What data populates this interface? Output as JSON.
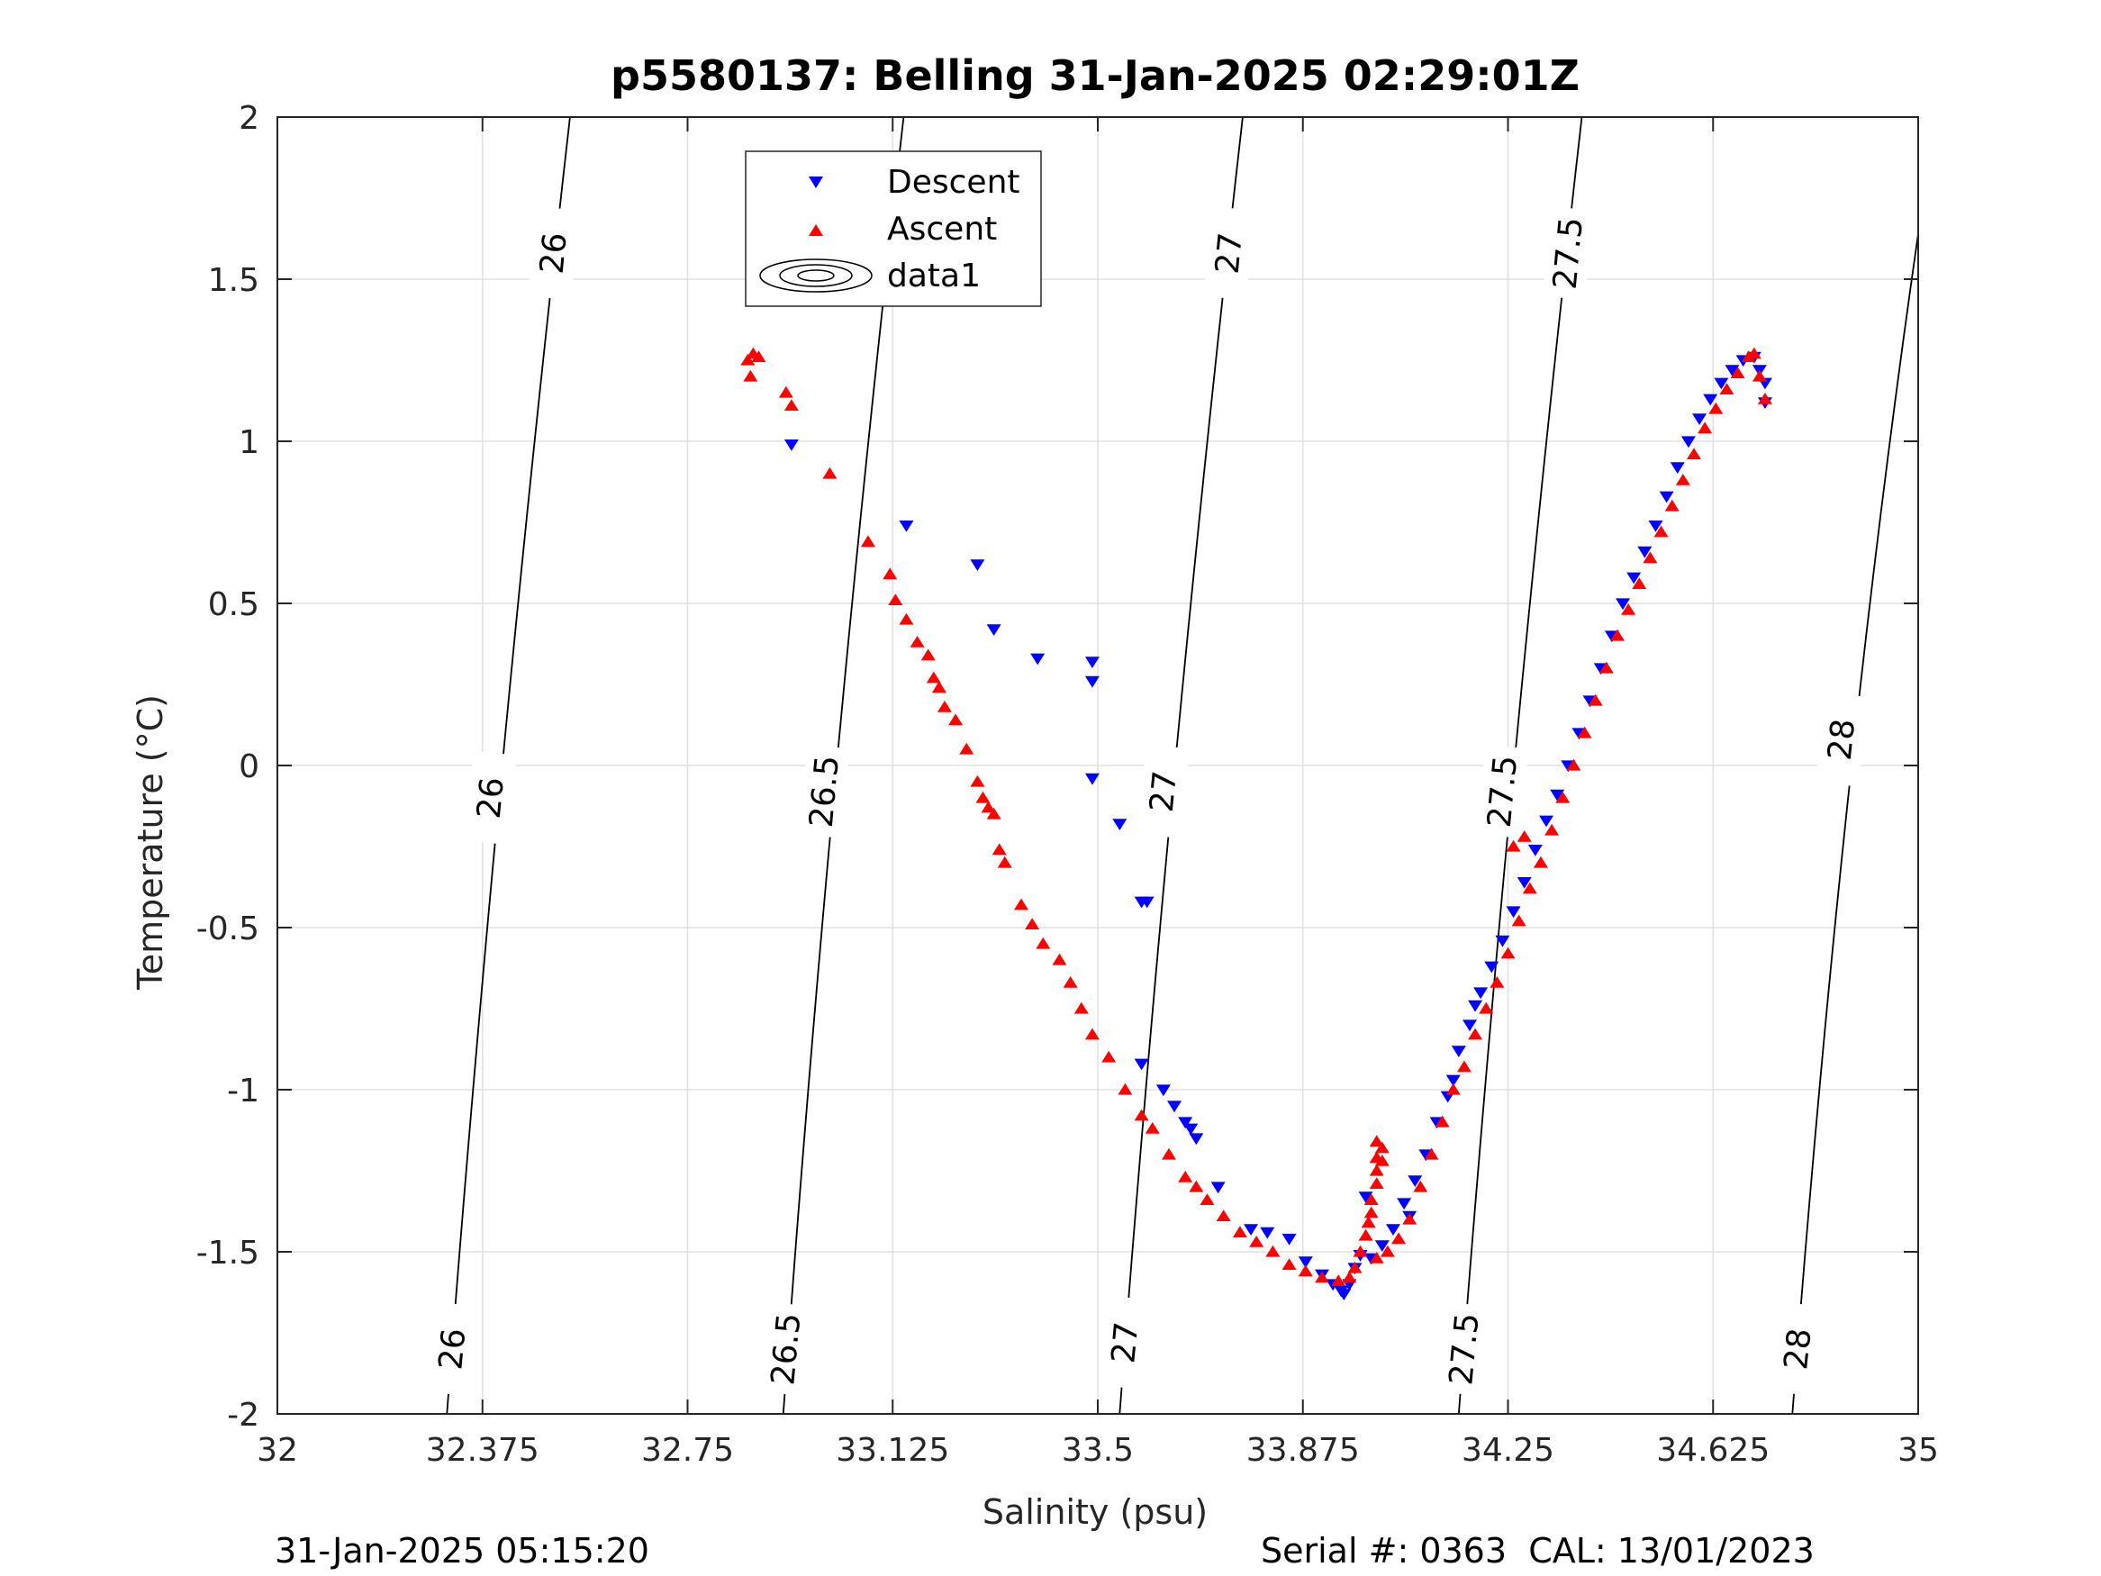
{
  "figure": {
    "footer_left": "31-Jan-2025 05:15:20",
    "footer_right": "Serial #: 0363  CAL: 13/01/2023"
  },
  "chart_data": {
    "type": "scatter",
    "title": "p5580137: Belling 31-Jan-2025 02:29:01Z",
    "xlabel": "Salinity (psu)",
    "ylabel": "Temperature (°C)",
    "xlim": [
      32,
      35
    ],
    "ylim": [
      -2,
      2
    ],
    "xticks": [
      32,
      32.375,
      32.75,
      33.125,
      33.5,
      33.875,
      34.25,
      34.625,
      35
    ],
    "xtick_labels": [
      "32",
      "32.375",
      "32.75",
      "33.125",
      "33.5",
      "33.875",
      "34.25",
      "34.625",
      "35"
    ],
    "yticks": [
      -2,
      -1.5,
      -1,
      -0.5,
      0,
      0.5,
      1,
      1.5,
      2
    ],
    "ytick_labels": [
      "-2",
      "-1.5",
      "-1",
      "-0.5",
      "0",
      "0.5",
      "1",
      "1.5",
      "2"
    ],
    "grid": true,
    "legend_position": "top-center",
    "legend": [
      "Descent",
      "Ascent",
      "data1"
    ],
    "colors": {
      "descent": "#0000ff",
      "ascent": "#ff0000",
      "contour": "#000000",
      "grid": "#e0e0e0"
    },
    "series": [
      {
        "name": "Descent",
        "marker": "triangle-down",
        "points": [
          [
            32.94,
            0.99
          ],
          [
            33.15,
            0.74
          ],
          [
            33.28,
            0.62
          ],
          [
            33.31,
            0.42
          ],
          [
            33.39,
            0.33
          ],
          [
            33.49,
            0.32
          ],
          [
            33.49,
            0.26
          ],
          [
            33.49,
            -0.04
          ],
          [
            33.54,
            -0.18
          ],
          [
            33.58,
            -0.42
          ],
          [
            33.59,
            -0.42
          ],
          [
            33.58,
            -0.92
          ],
          [
            33.62,
            -1.0
          ],
          [
            33.64,
            -1.05
          ],
          [
            33.66,
            -1.1
          ],
          [
            33.67,
            -1.12
          ],
          [
            33.68,
            -1.15
          ],
          [
            33.72,
            -1.3
          ],
          [
            33.78,
            -1.43
          ],
          [
            33.81,
            -1.44
          ],
          [
            33.85,
            -1.46
          ],
          [
            33.88,
            -1.53
          ],
          [
            33.91,
            -1.57
          ],
          [
            33.93,
            -1.6
          ],
          [
            33.945,
            -1.62
          ],
          [
            33.95,
            -1.63
          ],
          [
            33.96,
            -1.6
          ],
          [
            33.97,
            -1.55
          ],
          [
            33.98,
            -1.51
          ],
          [
            34.0,
            -1.52
          ],
          [
            33.99,
            -1.33
          ],
          [
            34.02,
            -1.48
          ],
          [
            34.04,
            -1.43
          ],
          [
            34.06,
            -1.35
          ],
          [
            34.08,
            -1.28
          ],
          [
            34.1,
            -1.2
          ],
          [
            34.12,
            -1.1
          ],
          [
            34.14,
            -1.02
          ],
          [
            34.15,
            -0.97
          ],
          [
            34.16,
            -0.88
          ],
          [
            34.18,
            -0.8
          ],
          [
            34.19,
            -0.74
          ],
          [
            34.2,
            -0.7
          ],
          [
            34.22,
            -0.62
          ],
          [
            34.24,
            -0.54
          ],
          [
            34.26,
            -0.45
          ],
          [
            34.28,
            -0.36
          ],
          [
            34.3,
            -0.26
          ],
          [
            34.32,
            -0.17
          ],
          [
            34.34,
            -0.09
          ],
          [
            34.36,
            0.0
          ],
          [
            34.38,
            0.1
          ],
          [
            34.4,
            0.2
          ],
          [
            34.42,
            0.3
          ],
          [
            34.44,
            0.4
          ],
          [
            34.46,
            0.5
          ],
          [
            34.48,
            0.58
          ],
          [
            34.5,
            0.66
          ],
          [
            34.52,
            0.74
          ],
          [
            34.54,
            0.83
          ],
          [
            34.56,
            0.92
          ],
          [
            34.58,
            1.0
          ],
          [
            34.6,
            1.07
          ],
          [
            34.62,
            1.13
          ],
          [
            34.64,
            1.18
          ],
          [
            34.66,
            1.22
          ],
          [
            34.68,
            1.25
          ],
          [
            34.7,
            1.26
          ],
          [
            34.71,
            1.22
          ],
          [
            34.72,
            1.18
          ],
          [
            34.72,
            1.12
          ],
          [
            34.07,
            -1.39
          ]
        ]
      },
      {
        "name": "Ascent",
        "marker": "triangle-up",
        "points": [
          [
            32.86,
            1.25
          ],
          [
            32.865,
            1.2
          ],
          [
            32.87,
            1.27
          ],
          [
            32.88,
            1.26
          ],
          [
            32.93,
            1.15
          ],
          [
            32.94,
            1.11
          ],
          [
            33.01,
            0.9
          ],
          [
            33.08,
            0.69
          ],
          [
            33.12,
            0.59
          ],
          [
            33.13,
            0.51
          ],
          [
            33.15,
            0.45
          ],
          [
            33.17,
            0.38
          ],
          [
            33.19,
            0.34
          ],
          [
            33.2,
            0.27
          ],
          [
            33.21,
            0.24
          ],
          [
            33.22,
            0.18
          ],
          [
            33.24,
            0.14
          ],
          [
            33.26,
            0.05
          ],
          [
            33.28,
            -0.05
          ],
          [
            33.29,
            -0.1
          ],
          [
            33.3,
            -0.13
          ],
          [
            33.31,
            -0.15
          ],
          [
            33.32,
            -0.26
          ],
          [
            33.33,
            -0.3
          ],
          [
            33.36,
            -0.43
          ],
          [
            33.38,
            -0.49
          ],
          [
            33.4,
            -0.55
          ],
          [
            33.43,
            -0.6
          ],
          [
            33.45,
            -0.67
          ],
          [
            33.47,
            -0.75
          ],
          [
            33.49,
            -0.83
          ],
          [
            33.52,
            -0.9
          ],
          [
            33.55,
            -1.0
          ],
          [
            33.58,
            -1.08
          ],
          [
            33.6,
            -1.12
          ],
          [
            33.63,
            -1.2
          ],
          [
            33.66,
            -1.27
          ],
          [
            33.68,
            -1.3
          ],
          [
            33.7,
            -1.34
          ],
          [
            33.73,
            -1.39
          ],
          [
            33.76,
            -1.44
          ],
          [
            33.79,
            -1.47
          ],
          [
            33.82,
            -1.5
          ],
          [
            33.85,
            -1.54
          ],
          [
            33.88,
            -1.56
          ],
          [
            33.91,
            -1.58
          ],
          [
            33.94,
            -1.59
          ],
          [
            33.96,
            -1.58
          ],
          [
            33.97,
            -1.55
          ],
          [
            33.98,
            -1.5
          ],
          [
            33.99,
            -1.45
          ],
          [
            33.995,
            -1.41
          ],
          [
            34.0,
            -1.38
          ],
          [
            34.0,
            -1.34
          ],
          [
            34.01,
            -1.29
          ],
          [
            34.01,
            -1.25
          ],
          [
            34.01,
            -1.21
          ],
          [
            34.01,
            -1.16
          ],
          [
            34.02,
            -1.18
          ],
          [
            34.02,
            -1.22
          ],
          [
            34.01,
            -1.52
          ],
          [
            34.03,
            -1.5
          ],
          [
            34.05,
            -1.46
          ],
          [
            34.07,
            -1.4
          ],
          [
            34.09,
            -1.3
          ],
          [
            34.11,
            -1.2
          ],
          [
            34.13,
            -1.1
          ],
          [
            34.15,
            -1.0
          ],
          [
            34.17,
            -0.93
          ],
          [
            34.19,
            -0.83
          ],
          [
            34.21,
            -0.75
          ],
          [
            34.23,
            -0.67
          ],
          [
            34.25,
            -0.58
          ],
          [
            34.27,
            -0.48
          ],
          [
            34.29,
            -0.38
          ],
          [
            34.31,
            -0.3
          ],
          [
            34.33,
            -0.2
          ],
          [
            34.35,
            -0.1
          ],
          [
            34.37,
            0.0
          ],
          [
            34.39,
            0.1
          ],
          [
            34.41,
            0.2
          ],
          [
            34.43,
            0.3
          ],
          [
            34.45,
            0.4
          ],
          [
            34.47,
            0.48
          ],
          [
            34.49,
            0.56
          ],
          [
            34.51,
            0.64
          ],
          [
            34.53,
            0.72
          ],
          [
            34.55,
            0.8
          ],
          [
            34.57,
            0.88
          ],
          [
            34.59,
            0.96
          ],
          [
            34.61,
            1.04
          ],
          [
            34.63,
            1.1
          ],
          [
            34.65,
            1.16
          ],
          [
            34.67,
            1.21
          ],
          [
            34.69,
            1.26
          ],
          [
            34.7,
            1.27
          ],
          [
            34.71,
            1.2
          ],
          [
            34.72,
            1.13
          ],
          [
            34.28,
            -0.22
          ],
          [
            34.26,
            -0.25
          ]
        ]
      }
    ],
    "isopycnals": [
      {
        "label": "26",
        "points": [
          [
            32.31,
            -2
          ],
          [
            32.4,
            0
          ],
          [
            32.535,
            2
          ]
        ],
        "label_positions": [
          [
            32.32,
            -1.8
          ],
          [
            32.39,
            -0.1
          ],
          [
            32.505,
            1.58
          ]
        ]
      },
      {
        "label": "26.5",
        "points": [
          [
            32.925,
            -2
          ],
          [
            33.01,
            0
          ],
          [
            33.145,
            2
          ]
        ],
        "label_positions": [
          [
            32.93,
            -1.8
          ],
          [
            33.0,
            -0.08
          ],
          [
            33.12,
            1.59
          ]
        ]
      },
      {
        "label": "27",
        "points": [
          [
            33.54,
            -2
          ],
          [
            33.63,
            0
          ],
          [
            33.765,
            2
          ]
        ],
        "label_positions": [
          [
            33.55,
            -1.78
          ],
          [
            33.62,
            -0.08
          ],
          [
            33.74,
            1.58
          ]
        ]
      },
      {
        "label": "27.5",
        "points": [
          [
            34.16,
            -2
          ],
          [
            34.25,
            0
          ],
          [
            34.385,
            2
          ]
        ],
        "label_positions": [
          [
            34.17,
            -1.8
          ],
          [
            34.24,
            -0.08
          ],
          [
            34.36,
            1.58
          ]
        ]
      },
      {
        "label": "28",
        "points": [
          [
            34.77,
            -2
          ],
          [
            34.86,
            0
          ],
          [
            35.0,
            1.64
          ]
        ],
        "label_positions": [
          [
            34.78,
            -1.8
          ],
          [
            34.86,
            0.08
          ]
        ]
      }
    ]
  }
}
